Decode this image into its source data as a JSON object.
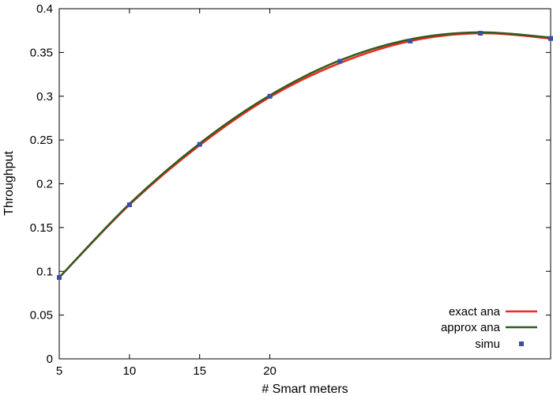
{
  "chart_data": {
    "type": "line",
    "xlabel": "# Smart meters",
    "ylabel": "Throughput",
    "xlim": [
      5,
      40
    ],
    "ylim": [
      0,
      0.4
    ],
    "x_ticks": [
      5,
      10,
      15,
      20
    ],
    "x_tick_labels": [
      "5",
      "10",
      "15",
      "20"
    ],
    "y_ticks": [
      0,
      0.05,
      0.1,
      0.15,
      0.2,
      0.25,
      0.3,
      0.35,
      0.4
    ],
    "y_tick_labels": [
      "0",
      "0.05",
      "0.1",
      "0.15",
      "0.2",
      "0.25",
      "0.3",
      "0.35",
      "0.4"
    ],
    "grid": false,
    "legend_position": "bottom-right",
    "series": [
      {
        "name": "exact ana",
        "kind": "line",
        "color": "#ee2a1c",
        "x": [
          5,
          10,
          15,
          20,
          25,
          30,
          35,
          40
        ],
        "y": [
          0.093,
          0.176,
          0.244,
          0.299,
          0.338,
          0.363,
          0.372,
          0.366
        ]
      },
      {
        "name": "approx ana",
        "kind": "line",
        "color": "#2f5a1e",
        "x": [
          5,
          10,
          15,
          20,
          25,
          30,
          35,
          40
        ],
        "y": [
          0.093,
          0.177,
          0.246,
          0.301,
          0.341,
          0.365,
          0.373,
          0.367
        ]
      },
      {
        "name": "simu",
        "kind": "scatter",
        "color": "#3c4ea0",
        "x": [
          5,
          10,
          15,
          20,
          25,
          30,
          35,
          40
        ],
        "y": [
          0.093,
          0.176,
          0.245,
          0.3,
          0.34,
          0.363,
          0.372,
          0.366
        ]
      }
    ]
  }
}
